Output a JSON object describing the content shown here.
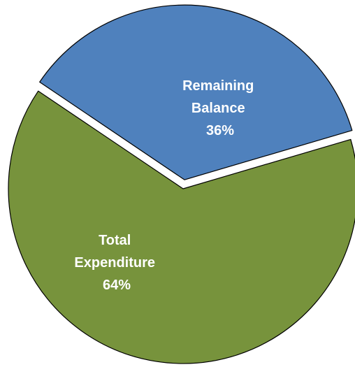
{
  "chart_data": {
    "type": "pie",
    "title": "",
    "slices": [
      {
        "name": "Remaining Balance",
        "label_lines": [
          "Remaining",
          "Balance"
        ],
        "percent_label": "36%",
        "value": 36,
        "color": "#4f81bd",
        "exploded": true
      },
      {
        "name": "Total Expenditure",
        "label_lines": [
          "Total",
          "Expenditure"
        ],
        "percent_label": "64%",
        "value": 64,
        "color": "#77933c",
        "exploded": false
      }
    ],
    "legend": "none",
    "data_labels": "inside"
  }
}
